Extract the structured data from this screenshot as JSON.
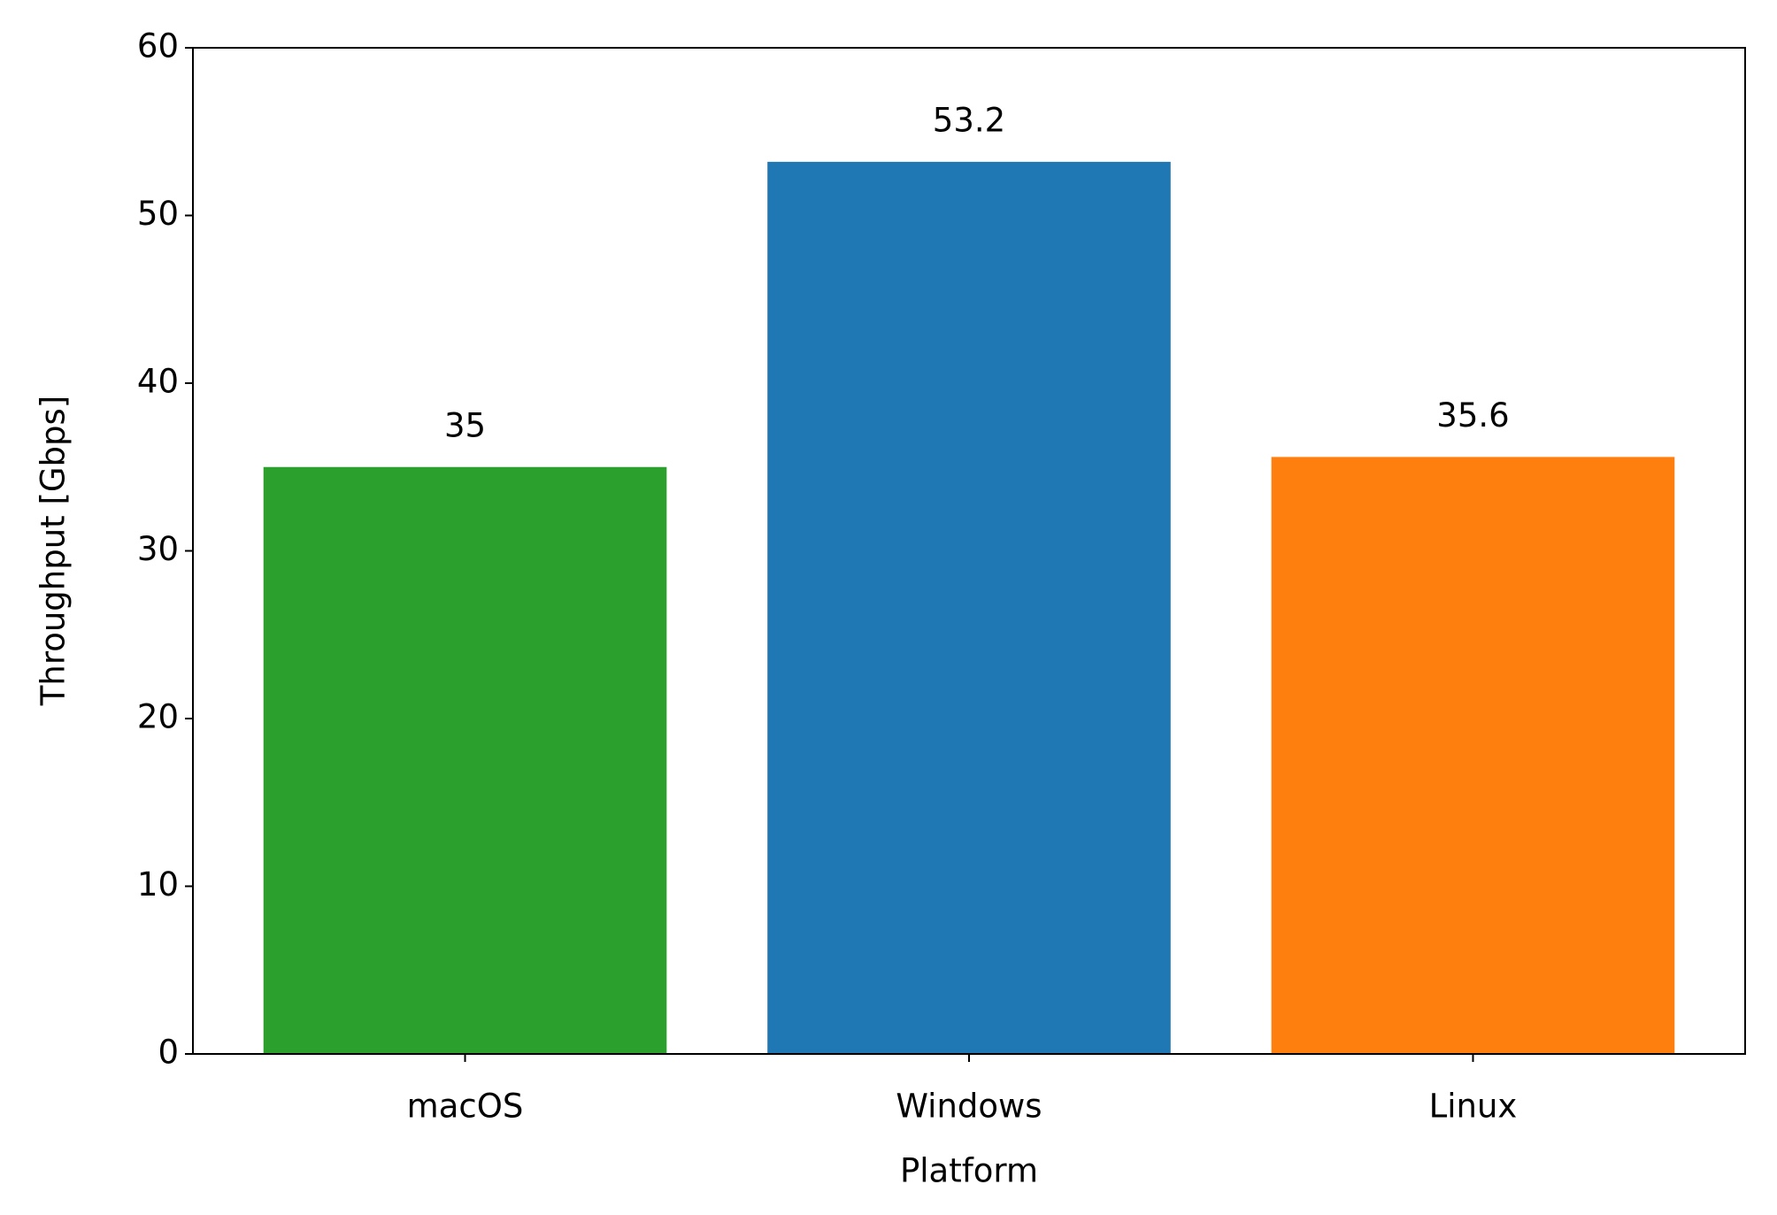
{
  "chart_data": {
    "type": "bar",
    "categories": [
      "macOS",
      "Windows",
      "Linux"
    ],
    "values": [
      35,
      53.2,
      35.6
    ],
    "colors": [
      "#2ca02c",
      "#1f77b4",
      "#ff7f0e"
    ],
    "xlabel": "Platform",
    "ylabel": "Throughput [Gbps]",
    "ylim": [
      0,
      60
    ],
    "yticks": [
      0,
      10,
      20,
      30,
      40,
      50,
      60
    ],
    "grid": false
  }
}
